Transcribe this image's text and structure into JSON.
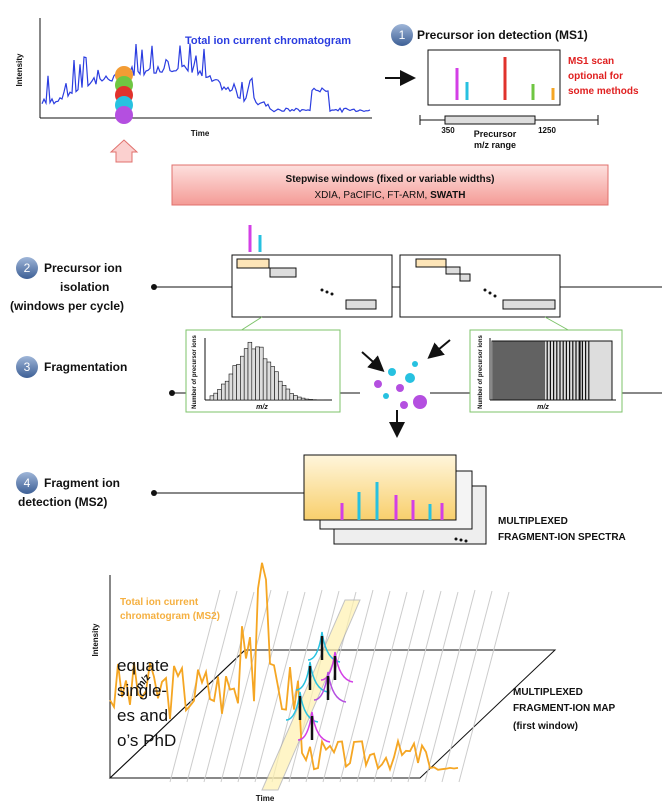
{
  "tic": {
    "title": "Total ion current chromatogram",
    "y_label": "Intensity",
    "x_label": "Time"
  },
  "steps": [
    {
      "number": "1",
      "label": [
        "Precursor ion detection (MS1)"
      ]
    },
    {
      "number": "2",
      "label": [
        "Precursor ion",
        "isolation",
        "(windows per cycle)"
      ]
    },
    {
      "number": "3",
      "label": [
        "Fragmentation"
      ]
    },
    {
      "number": "4",
      "label": [
        "Fragment ion",
        "detection (MS2)"
      ]
    }
  ],
  "ms1": {
    "note": [
      "MS1 scan",
      "optional for",
      "some methods"
    ],
    "range_start": "350",
    "range_end": "1250",
    "range_label": [
      "Precursor",
      "m/z range"
    ]
  },
  "windows": {
    "title": "Stepwise windows (fixed or variable widths)",
    "methods": "XDIA, PaCIFIC, FT-ARM, ",
    "methods_bold": "SWATH"
  },
  "histograms": {
    "y_label": "Number of precursor ions",
    "x_label": "m/z"
  },
  "spectra_label": [
    "MULTIPLEXED",
    "FRAGMENT-ION SPECTRA"
  ],
  "map": {
    "tic_label": [
      "Total ion current",
      "chromatogram (MS2)"
    ],
    "y_label": "Intensity",
    "depth_label": "m/z",
    "x_label": "Time",
    "label": [
      "MULTIPLEXED",
      "FRAGMENT-ION MAP",
      "(first window)"
    ]
  },
  "side_text": [
    "equate",
    "single-",
    "es and",
    "o’s PhD"
  ]
}
